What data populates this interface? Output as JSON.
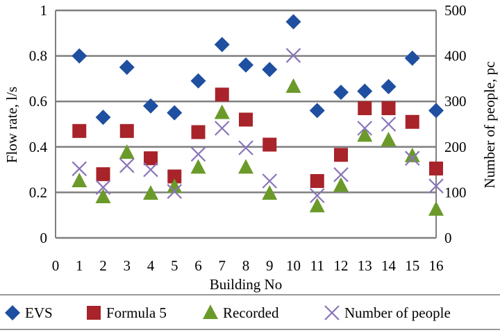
{
  "chart_data": {
    "type": "scatter",
    "xlabel": "Building No",
    "ylabel": "Flow rate, l/s",
    "y2label": "Number of people, pc",
    "xlim": [
      0,
      16
    ],
    "ylim": [
      0,
      1
    ],
    "y2lim": [
      0,
      500
    ],
    "xticks": [
      "0",
      "1",
      "2",
      "3",
      "4",
      "5",
      "6",
      "7",
      "8",
      "9",
      "10",
      "11",
      "12",
      "13",
      "14",
      "15",
      "16"
    ],
    "yticks": [
      "0",
      "0.2",
      "0.4",
      "0.6",
      "0.8",
      "1"
    ],
    "y2ticks": [
      "0",
      "100",
      "200",
      "300",
      "400",
      "500"
    ],
    "grid": "horizontal",
    "legend_placement": "bottom",
    "x": [
      1,
      2,
      3,
      4,
      5,
      6,
      7,
      8,
      9,
      10,
      11,
      12,
      13,
      14,
      15,
      16
    ],
    "series": [
      {
        "name": "EVS",
        "axis": "left",
        "marker": "diamond",
        "color": "#1f4fa0",
        "values": [
          0.8,
          0.53,
          0.75,
          0.58,
          0.55,
          0.69,
          0.85,
          0.76,
          0.74,
          0.95,
          0.56,
          0.64,
          0.645,
          0.665,
          0.79,
          0.56
        ]
      },
      {
        "name": "Formula 5",
        "axis": "left",
        "marker": "square",
        "color": "#a8232a",
        "values": [
          0.47,
          0.28,
          0.47,
          0.35,
          0.27,
          0.465,
          0.63,
          0.52,
          0.41,
          null,
          0.25,
          0.365,
          0.57,
          0.57,
          0.51,
          0.305
        ]
      },
      {
        "name": "Recorded",
        "axis": "left",
        "marker": "triangle",
        "color": "#6b9a2a",
        "values": [
          0.25,
          0.18,
          0.375,
          0.195,
          0.225,
          0.31,
          0.55,
          0.31,
          0.195,
          0.665,
          0.14,
          0.23,
          0.45,
          0.43,
          0.36,
          0.125
        ]
      },
      {
        "name": "Number of people",
        "axis": "right",
        "marker": "x",
        "color": "#8a74b8",
        "values": [
          152,
          111,
          159,
          150,
          102,
          184,
          241,
          198,
          125,
          401,
          93,
          139,
          241,
          250,
          175,
          114
        ]
      }
    ]
  }
}
